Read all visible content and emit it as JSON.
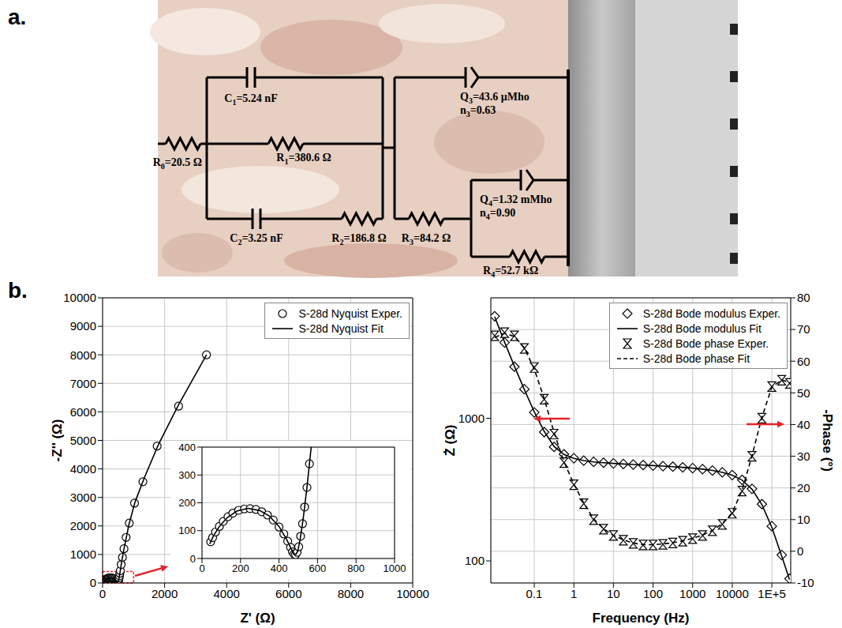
{
  "panel_labels": [
    "a.",
    "b."
  ],
  "circuit": {
    "elements": [
      {
        "kind": "resistor",
        "label": [
          "R",
          "0",
          "=20.5 Ω"
        ]
      },
      {
        "kind": "capacitor",
        "label": [
          "C",
          "1",
          "=5.24 nF"
        ]
      },
      {
        "kind": "resistor",
        "label": [
          "R",
          "1",
          "=380.6 Ω"
        ]
      },
      {
        "kind": "capacitor",
        "label": [
          "C",
          "2",
          "=3.25 nF"
        ]
      },
      {
        "kind": "resistor",
        "label": [
          "R",
          "2",
          "=186.8 Ω"
        ]
      },
      {
        "kind": "cpe",
        "label": [
          "Q",
          "3",
          "=43.6 μMho"
        ],
        "label2": [
          "n",
          "3",
          "=0.63"
        ]
      },
      {
        "kind": "resistor",
        "label": [
          "R",
          "3",
          "=84.2 Ω"
        ]
      },
      {
        "kind": "cpe",
        "label": [
          "Q",
          "4",
          "=1.32 mMho"
        ],
        "label2": [
          "n",
          "4",
          "=0.90"
        ]
      },
      {
        "kind": "resistor",
        "label": [
          "R",
          "4",
          "=52.7 kΩ"
        ]
      }
    ]
  },
  "chart_data": [
    {
      "type": "scatter",
      "x_label": "Z' (Ω)",
      "y_label": "-Z'' (Ω)",
      "xlim": [
        0,
        10000
      ],
      "ylim": [
        0,
        10000
      ],
      "xticks": [
        0,
        2000,
        4000,
        6000,
        8000,
        10000
      ],
      "yticks": [
        0,
        1000,
        2000,
        3000,
        4000,
        5000,
        6000,
        7000,
        8000,
        9000,
        10000
      ],
      "grid": true,
      "legend": "top right",
      "series": [
        {
          "name": "S-28d Nyquist Exper.",
          "color": "#000000",
          "marker": "circle",
          "x": [
            45,
            55,
            70,
            90,
            110,
            135,
            160,
            190,
            220,
            250,
            280,
            310,
            340,
            370,
            400,
            425,
            445,
            460,
            470,
            478,
            486,
            494,
            502,
            512,
            522,
            533,
            545,
            558,
            572,
            600,
            640,
            690,
            760,
            860,
            1030,
            1300,
            1760,
            2450,
            3350
          ],
          "values": [
            60,
            75,
            95,
            115,
            133,
            150,
            163,
            173,
            178,
            179,
            176,
            168,
            156,
            138,
            113,
            88,
            62,
            40,
            24,
            16,
            14,
            22,
            42,
            80,
            125,
            185,
            255,
            340,
            430,
            650,
            900,
            1200,
            1600,
            2100,
            2800,
            3550,
            4800,
            6200,
            8000
          ]
        },
        {
          "name": "S-28d Nyquist Fit",
          "color": "#000000",
          "line_style": "solid",
          "x": [
            40,
            60,
            90,
            130,
            180,
            240,
            300,
            350,
            400,
            440,
            465,
            478,
            488,
            498,
            510,
            525,
            545,
            570,
            620,
            700,
            850,
            1050,
            1350,
            1800,
            2450,
            3350
          ],
          "values": [
            52,
            82,
            115,
            146,
            170,
            180,
            172,
            152,
            115,
            68,
            32,
            17,
            15,
            28,
            70,
            140,
            255,
            420,
            780,
            1250,
            2050,
            2850,
            3700,
            4850,
            6250,
            8000
          ]
        }
      ],
      "inset": {
        "xlim": [
          0,
          1000
        ],
        "ylim": [
          0,
          400
        ],
        "xticks": [
          0,
          200,
          400,
          600,
          800,
          1000
        ],
        "yticks": [
          0,
          100,
          200,
          300,
          400
        ],
        "grid": true
      }
    },
    {
      "type": "scatter",
      "x_label": "Frequency (Hz)",
      "y_label": "Ż (Ω)",
      "y2_label": "-Phase (°)",
      "log": true,
      "xlim": [
        0.008,
        300000
      ],
      "xticks": [
        0.1,
        1,
        10,
        100,
        1000,
        10000,
        {
          "value": 100000,
          "label": "1E+5"
        }
      ],
      "ylim": [
        70,
        7000
      ],
      "yticks": [
        100,
        1000
      ],
      "y2lim": [
        -10,
        80
      ],
      "y2ticks": [
        -10,
        0,
        10,
        20,
        30,
        40,
        50,
        60,
        70,
        80
      ],
      "grid": true,
      "legend": "top right",
      "x": [
        0.01,
        0.0178,
        0.0316,
        0.0562,
        0.1,
        0.178,
        0.316,
        0.562,
        1,
        1.78,
        3.16,
        5.62,
        10,
        17.8,
        31.6,
        56.2,
        100,
        178,
        316,
        562,
        1000,
        1780,
        3160,
        5620,
        10000,
        17800,
        31600,
        56200,
        100000,
        178000,
        280000
      ],
      "series": [
        {
          "name": "S-28d Bode modulus Exper.",
          "color": "#000000",
          "marker": "diamond",
          "values": [
            5200,
            3400,
            2300,
            1600,
            1100,
            800,
            630,
            560,
            525,
            505,
            495,
            488,
            483,
            478,
            474,
            470,
            466,
            462,
            458,
            453,
            447,
            440,
            430,
            418,
            400,
            370,
            320,
            250,
            175,
            110,
            75
          ]
        },
        {
          "name": "S-28d Bode modulus Fit",
          "color": "#000000",
          "line_style": "solid",
          "values": [
            5150,
            3420,
            2310,
            1590,
            1110,
            810,
            635,
            558,
            524,
            506,
            494,
            488,
            483,
            478,
            474,
            470,
            466,
            462,
            458,
            453,
            447,
            440,
            431,
            418,
            399,
            368,
            318,
            248,
            172,
            108,
            74
          ]
        },
        {
          "name": "S-28d Bode phase Exper.",
          "color": "#000000",
          "marker": "hourglass",
          "axis": "y2",
          "values": [
            68,
            69,
            68,
            64,
            58,
            48,
            37,
            28,
            21,
            15,
            10,
            7,
            5,
            3.5,
            2.5,
            2,
            2,
            2.2,
            2.6,
            3.2,
            4,
            5,
            6.5,
            8.5,
            12,
            19,
            30,
            42,
            52,
            54,
            53
          ]
        },
        {
          "name": "S-28d Bode phase Fit",
          "color": "#000000",
          "line_style": "dashed",
          "axis": "y2",
          "values": [
            67.5,
            68.8,
            67.8,
            64.2,
            57.5,
            48.2,
            37.5,
            28.3,
            21.2,
            15.2,
            10.2,
            7.1,
            5,
            3.6,
            2.6,
            2.1,
            2.1,
            2.3,
            2.7,
            3.3,
            4.1,
            5.1,
            6.6,
            8.7,
            12.2,
            19.3,
            30.2,
            42.3,
            51.8,
            54.1,
            53.2
          ]
        }
      ]
    }
  ]
}
